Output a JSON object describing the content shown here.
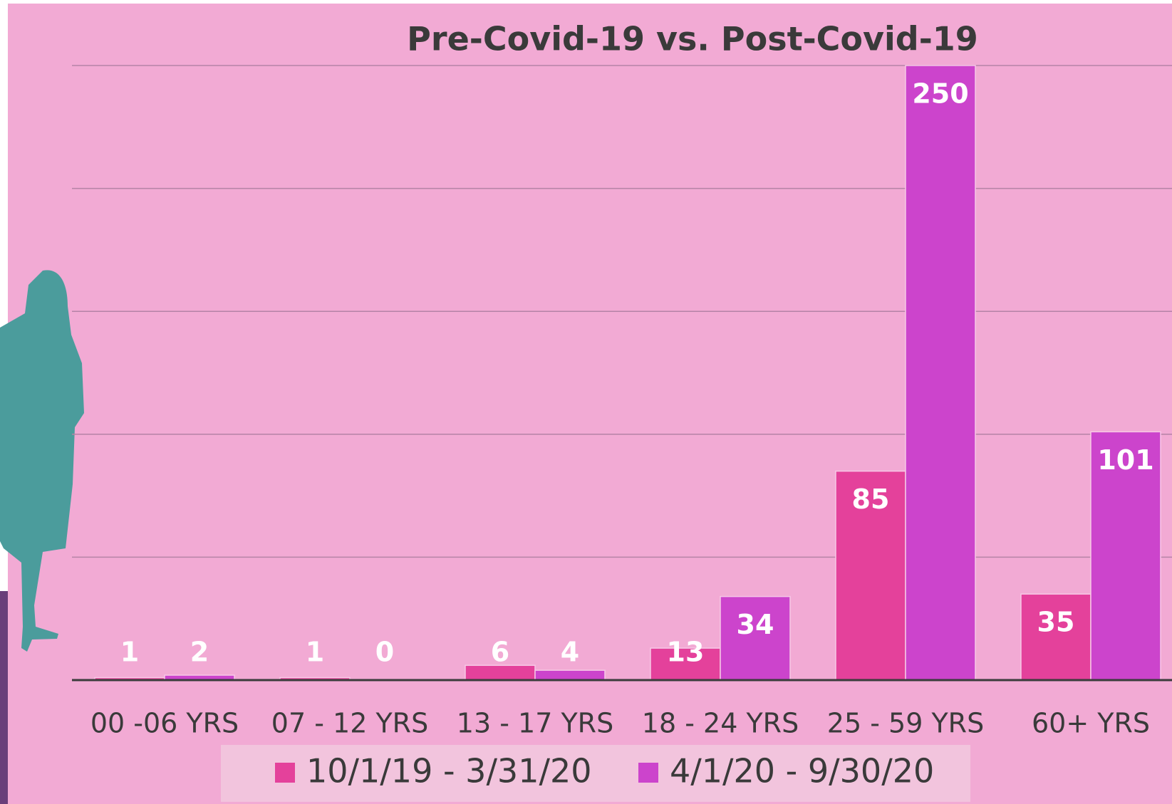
{
  "chart_data": {
    "type": "bar",
    "title": "Pre-Covid-19 vs. Post-Covid-19",
    "categories": [
      "00 -06 YRS",
      "07 - 12 YRS",
      "13 - 17 YRS",
      "18 - 24 YRS",
      "25 - 59 YRS",
      "60+ YRS"
    ],
    "series": [
      {
        "name": "10/1/19 - 3/31/20",
        "color": "#e4419b",
        "values": [
          1,
          1,
          6,
          13,
          85,
          35
        ]
      },
      {
        "name": "4/1/20 - 9/30/20",
        "color": "#cc44cc",
        "values": [
          2,
          0,
          4,
          34,
          250,
          101
        ]
      }
    ],
    "ylim": [
      0,
      250
    ],
    "yticks": [
      0,
      50,
      100,
      150,
      200,
      250
    ],
    "grid": true
  }
}
